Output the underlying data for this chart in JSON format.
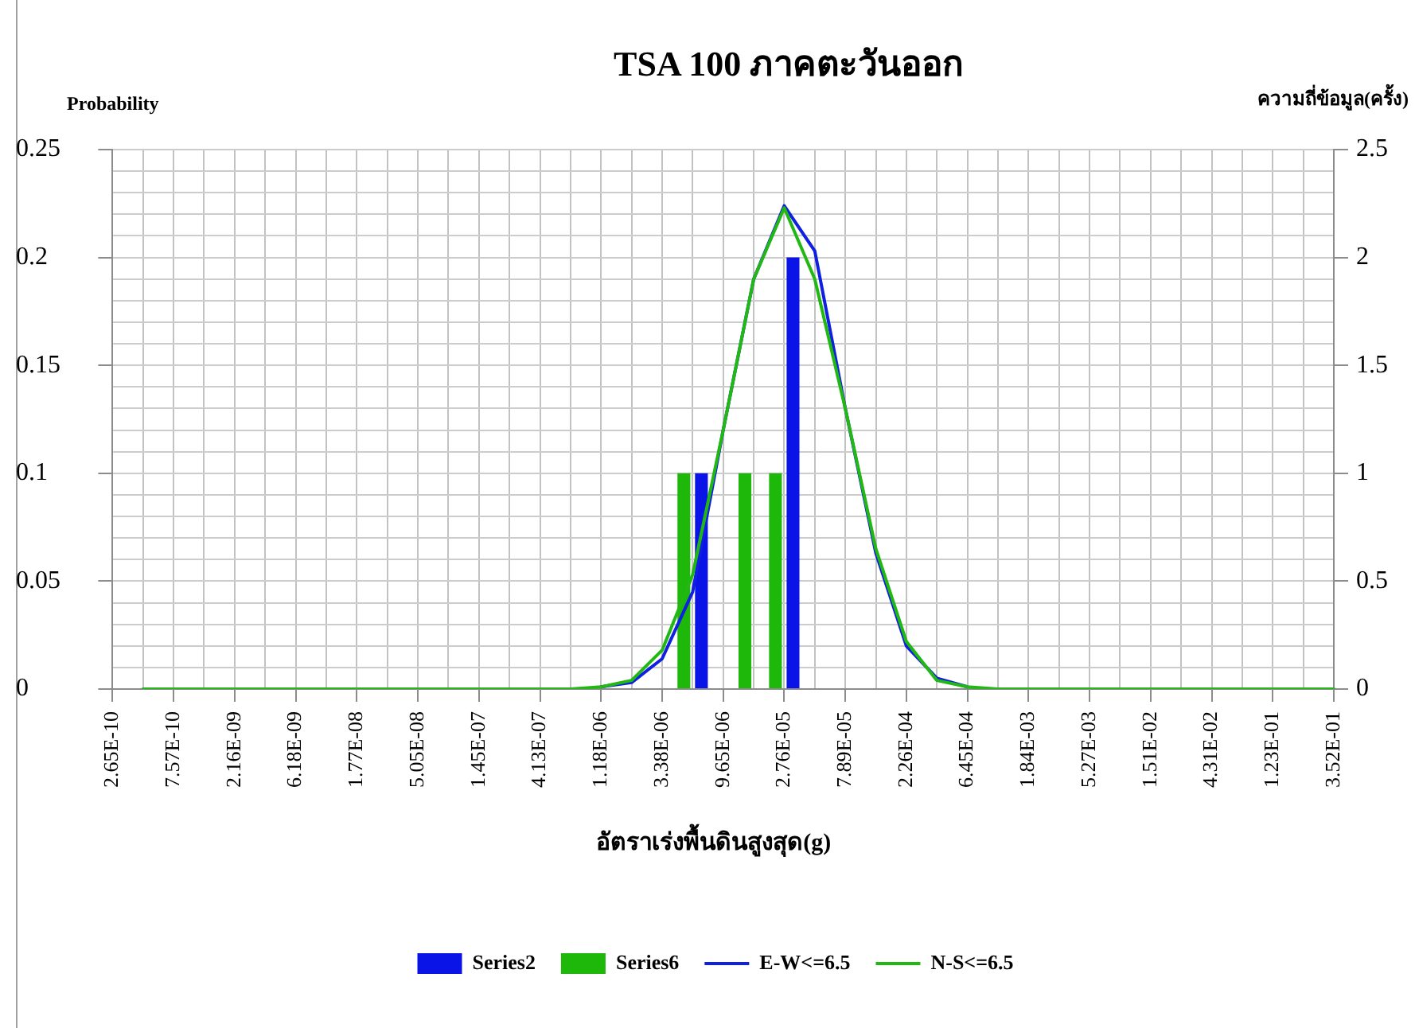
{
  "chart_data": {
    "type": "bar",
    "title": "TSA 100 ภาคตะวันออก",
    "xlabel": "อัตราเร่งพื้นดินสูงสุด(g)",
    "ylabel": "Probability",
    "y2label": "ความถี่ข้อมูล(ครั้ง)",
    "categories": [
      "2.65E-10",
      null,
      "7.57E-10",
      null,
      "2.16E-09",
      null,
      "6.18E-09",
      null,
      "1.77E-08",
      null,
      "5.05E-08",
      null,
      "1.45E-07",
      null,
      "4.13E-07",
      null,
      "1.18E-06",
      null,
      "3.38E-06",
      null,
      "9.65E-06",
      null,
      "2.76E-05",
      null,
      "7.89E-05",
      null,
      "2.26E-04",
      null,
      "6.45E-04",
      null,
      "1.84E-03",
      null,
      "5.27E-03",
      null,
      "1.51E-02",
      null,
      "4.31E-02",
      null,
      "1.23E-01",
      null,
      "3.52E-01"
    ],
    "series": [
      {
        "name": "Series2",
        "axis": "y2",
        "color": "#0a14e6",
        "values": [
          null,
          null,
          null,
          null,
          null,
          null,
          null,
          null,
          null,
          null,
          null,
          null,
          null,
          null,
          null,
          null,
          null,
          null,
          null,
          1,
          null,
          null,
          2,
          null,
          null,
          null,
          null,
          null,
          null,
          null,
          null,
          null,
          null,
          null,
          null,
          null,
          null,
          null,
          null,
          null,
          null
        ]
      },
      {
        "name": "Series6",
        "axis": "y2",
        "color": "#1eb80a",
        "values": [
          null,
          null,
          null,
          null,
          null,
          null,
          null,
          null,
          null,
          null,
          null,
          null,
          null,
          null,
          null,
          null,
          null,
          null,
          null,
          1,
          null,
          1,
          1,
          null,
          null,
          null,
          null,
          null,
          null,
          null,
          null,
          null,
          null,
          null,
          null,
          null,
          null,
          null,
          null,
          null,
          null
        ]
      },
      {
        "name": "E-W<=6.5",
        "type": "line",
        "color": "#1020e0",
        "values": [
          null,
          null,
          null,
          null,
          null,
          null,
          null,
          null,
          null,
          null,
          null,
          null,
          null,
          null,
          null,
          null,
          0.001,
          0.003,
          0.014,
          0.045,
          0.12,
          0.19,
          0.224,
          0.203,
          0.13,
          0.063,
          0.02,
          0.005,
          0.001,
          null,
          null,
          null,
          null,
          null,
          null,
          null,
          null,
          null,
          null,
          null,
          null
        ]
      },
      {
        "name": "N-S<=6.5",
        "type": "line",
        "color": "#22b814",
        "values": [
          null,
          0,
          0,
          0,
          0,
          0,
          0,
          0,
          0,
          0,
          0,
          0,
          0,
          0,
          0,
          0,
          0.001,
          0.004,
          0.018,
          0.053,
          0.12,
          0.19,
          0.223,
          0.19,
          0.13,
          0.065,
          0.022,
          0.004,
          0.001,
          0,
          0,
          0,
          0,
          0,
          0,
          0,
          0,
          0,
          0,
          0,
          0
        ]
      }
    ],
    "ylim": [
      0,
      0.25
    ],
    "yticks": [
      0,
      {
        "value": 0.01,
        "label": null
      },
      {
        "value": 0.02,
        "label": null
      },
      {
        "value": 0.03,
        "label": null
      },
      {
        "value": 0.04,
        "label": null
      },
      0.05,
      {
        "value": 0.06,
        "label": null
      },
      {
        "value": 0.07,
        "label": null
      },
      {
        "value": 0.08,
        "label": null
      },
      {
        "value": 0.09,
        "label": null
      },
      0.1,
      {
        "value": 0.11,
        "label": null
      },
      {
        "value": 0.12,
        "label": null
      },
      {
        "value": 0.13,
        "label": null
      },
      {
        "value": 0.14,
        "label": null
      },
      0.15,
      {
        "value": 0.16,
        "label": null
      },
      {
        "value": 0.17,
        "label": null
      },
      {
        "value": 0.18,
        "label": null
      },
      {
        "value": 0.19,
        "label": null
      },
      0.2,
      {
        "value": 0.21,
        "label": null
      },
      {
        "value": 0.22,
        "label": null
      },
      {
        "value": 0.23,
        "label": null
      },
      {
        "value": 0.24,
        "label": null
      },
      0.25
    ],
    "y2lim": [
      0,
      2.5
    ],
    "y2ticks": [
      0,
      0.5,
      1,
      1.5,
      2,
      2.5
    ],
    "grid": true,
    "legend": "bottom",
    "marker": "none"
  }
}
